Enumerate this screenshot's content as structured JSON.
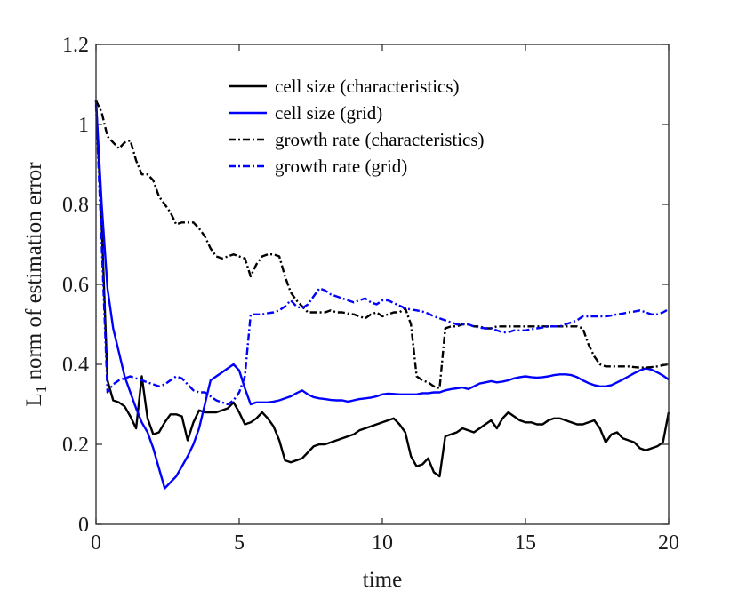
{
  "chart_data": {
    "type": "line",
    "title": "",
    "xlabel": "time",
    "ylabel_main": "L",
    "ylabel_sub": "1",
    "ylabel_rest": " norm of estimation error",
    "xlim": [
      0,
      20
    ],
    "ylim": [
      0,
      1.2
    ],
    "xticks": [
      0,
      5,
      10,
      15,
      20
    ],
    "xtick_labels": [
      "0",
      "5",
      "10",
      "15",
      "20"
    ],
    "yticks": [
      0,
      0.2,
      0.4,
      0.6,
      0.8,
      1,
      1.2
    ],
    "ytick_labels": [
      "0",
      "0.2",
      "0.4",
      "0.6",
      "0.8",
      "1",
      "1.2"
    ],
    "grid": false,
    "legend_position": "top-right",
    "series": [
      {
        "name": "cell size (characteristics)",
        "color": "#000000",
        "style": "solid",
        "x": [
          0,
          0.2,
          0.4,
          0.6,
          0.8,
          1.0,
          1.2,
          1.4,
          1.6,
          1.8,
          2.0,
          2.2,
          2.4,
          2.6,
          2.8,
          3.0,
          3.2,
          3.4,
          3.6,
          3.8,
          4.0,
          4.2,
          4.4,
          4.6,
          4.8,
          5.0,
          5.2,
          5.4,
          5.6,
          5.8,
          6.0,
          6.2,
          6.4,
          6.6,
          6.8,
          7.0,
          7.2,
          7.4,
          7.6,
          7.8,
          8.0,
          8.2,
          8.4,
          8.6,
          8.8,
          9.0,
          9.2,
          9.4,
          9.6,
          9.8,
          10.0,
          10.2,
          10.4,
          10.6,
          10.8,
          11.0,
          11.2,
          11.4,
          11.6,
          11.8,
          12.0,
          12.2,
          12.4,
          12.6,
          12.8,
          13.0,
          13.2,
          13.4,
          13.6,
          13.8,
          14.0,
          14.2,
          14.4,
          14.6,
          14.8,
          15.0,
          15.2,
          15.4,
          15.6,
          15.8,
          16.0,
          16.2,
          16.4,
          16.6,
          16.8,
          17.0,
          17.2,
          17.4,
          17.6,
          17.8,
          18.0,
          18.2,
          18.4,
          18.6,
          18.8,
          19.0,
          19.2,
          19.4,
          19.6,
          19.8,
          20.0
        ],
        "values": [
          1.06,
          0.75,
          0.36,
          0.31,
          0.305,
          0.295,
          0.27,
          0.24,
          0.37,
          0.265,
          0.225,
          0.23,
          0.255,
          0.275,
          0.275,
          0.27,
          0.21,
          0.255,
          0.285,
          0.28,
          0.28,
          0.28,
          0.285,
          0.29,
          0.305,
          0.28,
          0.25,
          0.255,
          0.265,
          0.28,
          0.265,
          0.245,
          0.21,
          0.16,
          0.155,
          0.16,
          0.165,
          0.18,
          0.195,
          0.2,
          0.2,
          0.205,
          0.21,
          0.215,
          0.22,
          0.225,
          0.235,
          0.24,
          0.245,
          0.25,
          0.255,
          0.26,
          0.265,
          0.25,
          0.23,
          0.17,
          0.145,
          0.15,
          0.165,
          0.13,
          0.12,
          0.22,
          0.225,
          0.23,
          0.24,
          0.235,
          0.23,
          0.24,
          0.25,
          0.26,
          0.24,
          0.265,
          0.28,
          0.27,
          0.26,
          0.255,
          0.255,
          0.25,
          0.25,
          0.26,
          0.265,
          0.265,
          0.26,
          0.255,
          0.25,
          0.25,
          0.255,
          0.26,
          0.24,
          0.205,
          0.225,
          0.23,
          0.215,
          0.21,
          0.205,
          0.19,
          0.185,
          0.19,
          0.195,
          0.205,
          0.28
        ]
      },
      {
        "name": "cell size (grid)",
        "color": "#0000ff",
        "style": "solid",
        "x": [
          0,
          0.2,
          0.4,
          0.6,
          0.8,
          1.0,
          1.2,
          1.4,
          1.6,
          1.8,
          2.0,
          2.2,
          2.4,
          2.6,
          2.8,
          3.0,
          3.2,
          3.4,
          3.6,
          3.8,
          4.0,
          4.2,
          4.4,
          4.6,
          4.8,
          5.0,
          5.2,
          5.4,
          5.6,
          5.8,
          6.0,
          6.2,
          6.4,
          6.6,
          6.8,
          7.0,
          7.2,
          7.4,
          7.6,
          7.8,
          8.0,
          8.2,
          8.4,
          8.6,
          8.8,
          9.0,
          9.2,
          9.4,
          9.6,
          9.8,
          10.0,
          10.2,
          10.4,
          10.6,
          10.8,
          11.0,
          11.2,
          11.4,
          11.6,
          11.8,
          12.0,
          12.2,
          12.4,
          12.6,
          12.8,
          13.0,
          13.2,
          13.4,
          13.6,
          13.8,
          14.0,
          14.2,
          14.4,
          14.6,
          14.8,
          15.0,
          15.2,
          15.4,
          15.6,
          15.8,
          16.0,
          16.2,
          16.4,
          16.6,
          16.8,
          17.0,
          17.2,
          17.4,
          17.6,
          17.8,
          18.0,
          18.2,
          18.4,
          18.6,
          18.8,
          19.0,
          19.2,
          19.4,
          19.6,
          19.8,
          20.0
        ],
        "values": [
          1.06,
          0.8,
          0.59,
          0.49,
          0.43,
          0.37,
          0.33,
          0.29,
          0.255,
          0.23,
          0.19,
          0.14,
          0.09,
          0.105,
          0.12,
          0.145,
          0.17,
          0.2,
          0.24,
          0.3,
          0.36,
          0.37,
          0.38,
          0.39,
          0.4,
          0.385,
          0.34,
          0.3,
          0.305,
          0.305,
          0.305,
          0.307,
          0.31,
          0.315,
          0.32,
          0.328,
          0.335,
          0.325,
          0.318,
          0.315,
          0.313,
          0.311,
          0.31,
          0.31,
          0.307,
          0.31,
          0.313,
          0.315,
          0.317,
          0.32,
          0.325,
          0.327,
          0.326,
          0.325,
          0.325,
          0.325,
          0.325,
          0.328,
          0.328,
          0.33,
          0.33,
          0.335,
          0.338,
          0.34,
          0.342,
          0.338,
          0.345,
          0.352,
          0.355,
          0.358,
          0.355,
          0.357,
          0.36,
          0.365,
          0.368,
          0.37,
          0.368,
          0.367,
          0.368,
          0.37,
          0.373,
          0.375,
          0.375,
          0.373,
          0.368,
          0.36,
          0.353,
          0.348,
          0.345,
          0.345,
          0.348,
          0.355,
          0.362,
          0.37,
          0.378,
          0.385,
          0.39,
          0.387,
          0.38,
          0.372,
          0.362
        ]
      },
      {
        "name": "growth rate (characteristics)",
        "color": "#000000",
        "style": "dashdot",
        "x": [
          0,
          0.2,
          0.4,
          0.6,
          0.8,
          1.0,
          1.2,
          1.4,
          1.6,
          1.8,
          2.0,
          2.2,
          2.4,
          2.6,
          2.8,
          3.0,
          3.2,
          3.4,
          3.6,
          3.8,
          4.0,
          4.2,
          4.4,
          4.6,
          4.8,
          5.0,
          5.2,
          5.4,
          5.6,
          5.8,
          6.0,
          6.2,
          6.4,
          6.6,
          6.8,
          7.0,
          7.2,
          7.4,
          7.6,
          7.8,
          8.0,
          8.2,
          8.4,
          8.6,
          8.8,
          9.0,
          9.2,
          9.4,
          9.6,
          9.8,
          10.0,
          10.2,
          10.4,
          10.6,
          10.8,
          11.0,
          11.2,
          11.4,
          11.6,
          11.8,
          12.0,
          12.2,
          12.4,
          12.6,
          12.8,
          13.0,
          13.2,
          13.4,
          13.6,
          13.8,
          14.0,
          14.2,
          14.4,
          14.6,
          14.8,
          15.0,
          15.2,
          15.4,
          15.6,
          15.8,
          16.0,
          16.2,
          16.4,
          16.6,
          16.8,
          17.0,
          17.2,
          17.4,
          17.6,
          17.8,
          18.0,
          18.2,
          18.4,
          18.6,
          18.8,
          19.0,
          19.2,
          19.4,
          19.6,
          19.8,
          20.0
        ],
        "values": [
          1.06,
          1.03,
          0.97,
          0.955,
          0.94,
          0.955,
          0.96,
          0.91,
          0.875,
          0.875,
          0.86,
          0.82,
          0.8,
          0.78,
          0.75,
          0.755,
          0.755,
          0.755,
          0.74,
          0.72,
          0.69,
          0.67,
          0.665,
          0.67,
          0.675,
          0.67,
          0.665,
          0.62,
          0.65,
          0.67,
          0.675,
          0.675,
          0.67,
          0.62,
          0.58,
          0.56,
          0.545,
          0.53,
          0.53,
          0.53,
          0.53,
          0.535,
          0.53,
          0.53,
          0.527,
          0.525,
          0.52,
          0.515,
          0.525,
          0.53,
          0.52,
          0.525,
          0.53,
          0.53,
          0.54,
          0.5,
          0.37,
          0.36,
          0.355,
          0.345,
          0.34,
          0.49,
          0.495,
          0.495,
          0.5,
          0.5,
          0.495,
          0.495,
          0.49,
          0.49,
          0.495,
          0.495,
          0.495,
          0.495,
          0.495,
          0.495,
          0.495,
          0.495,
          0.495,
          0.495,
          0.495,
          0.495,
          0.495,
          0.495,
          0.495,
          0.49,
          0.45,
          0.42,
          0.4,
          0.395,
          0.395,
          0.395,
          0.395,
          0.395,
          0.393,
          0.392,
          0.392,
          0.393,
          0.395,
          0.398,
          0.4
        ]
      },
      {
        "name": "growth rate (grid)",
        "color": "#0000ff",
        "style": "dashdot",
        "x": [
          0,
          0.2,
          0.4,
          0.6,
          0.8,
          1.0,
          1.2,
          1.4,
          1.6,
          1.8,
          2.0,
          2.2,
          2.4,
          2.6,
          2.8,
          3.0,
          3.2,
          3.4,
          3.6,
          3.8,
          4.0,
          4.2,
          4.4,
          4.6,
          4.8,
          5.0,
          5.2,
          5.4,
          5.6,
          5.8,
          6.0,
          6.2,
          6.4,
          6.6,
          6.8,
          7.0,
          7.2,
          7.4,
          7.6,
          7.8,
          8.0,
          8.2,
          8.4,
          8.6,
          8.8,
          9.0,
          9.2,
          9.4,
          9.6,
          9.8,
          10.0,
          10.2,
          10.4,
          10.6,
          10.8,
          11.0,
          11.2,
          11.4,
          11.6,
          11.8,
          12.0,
          12.2,
          12.4,
          12.6,
          12.8,
          13.0,
          13.2,
          13.4,
          13.6,
          13.8,
          14.0,
          14.2,
          14.4,
          14.6,
          14.8,
          15.0,
          15.2,
          15.4,
          15.6,
          15.8,
          16.0,
          16.2,
          16.4,
          16.6,
          16.8,
          17.0,
          17.2,
          17.4,
          17.6,
          17.8,
          18.0,
          18.2,
          18.4,
          18.6,
          18.8,
          19.0,
          19.2,
          19.4,
          19.6,
          19.8,
          20.0
        ],
        "values": [
          1.05,
          0.7,
          0.33,
          0.35,
          0.36,
          0.365,
          0.37,
          0.365,
          0.36,
          0.355,
          0.35,
          0.345,
          0.35,
          0.36,
          0.37,
          0.365,
          0.35,
          0.335,
          0.33,
          0.33,
          0.32,
          0.31,
          0.305,
          0.3,
          0.31,
          0.33,
          0.37,
          0.525,
          0.525,
          0.525,
          0.528,
          0.53,
          0.535,
          0.545,
          0.56,
          0.545,
          0.54,
          0.55,
          0.57,
          0.59,
          0.585,
          0.575,
          0.57,
          0.565,
          0.56,
          0.555,
          0.56,
          0.565,
          0.555,
          0.55,
          0.56,
          0.56,
          0.553,
          0.547,
          0.54,
          0.537,
          0.535,
          0.532,
          0.527,
          0.52,
          0.515,
          0.51,
          0.505,
          0.5,
          0.5,
          0.5,
          0.495,
          0.492,
          0.49,
          0.49,
          0.485,
          0.48,
          0.48,
          0.485,
          0.485,
          0.485,
          0.488,
          0.49,
          0.492,
          0.495,
          0.495,
          0.495,
          0.5,
          0.505,
          0.51,
          0.52,
          0.52,
          0.52,
          0.52,
          0.52,
          0.522,
          0.525,
          0.527,
          0.53,
          0.532,
          0.535,
          0.53,
          0.525,
          0.525,
          0.53,
          0.538
        ]
      }
    ]
  }
}
